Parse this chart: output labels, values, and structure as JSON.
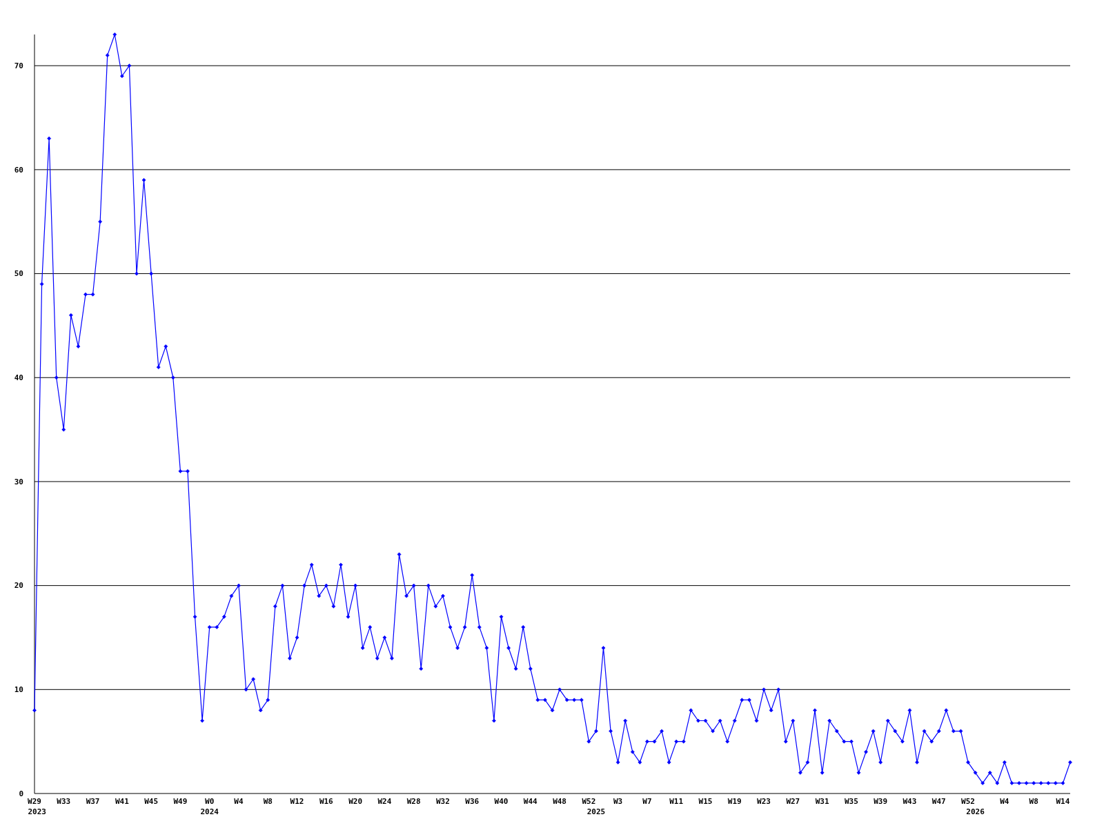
{
  "chart_data": {
    "type": "line",
    "categories": [
      "W29",
      null,
      null,
      null,
      "W33",
      null,
      null,
      null,
      "W37",
      null,
      null,
      null,
      "W41",
      null,
      null,
      null,
      "W45",
      null,
      null,
      null,
      "W49",
      null,
      null,
      null,
      "W0",
      null,
      null,
      null,
      "W4",
      null,
      null,
      null,
      "W8",
      null,
      null,
      null,
      "W12",
      null,
      null,
      null,
      "W16",
      null,
      null,
      null,
      "W20",
      null,
      null,
      null,
      "W24",
      null,
      null,
      null,
      "W28",
      null,
      null,
      null,
      "W32",
      null,
      null,
      null,
      "W36",
      null,
      null,
      null,
      "W40",
      null,
      null,
      null,
      "W44",
      null,
      null,
      null,
      "W48",
      null,
      null,
      null,
      "W52",
      null,
      null,
      null,
      "W3",
      null,
      null,
      null,
      "W7",
      null,
      null,
      null,
      "W11",
      null,
      null,
      null,
      "W15",
      null,
      null,
      null,
      "W19",
      null,
      null,
      null,
      "W23",
      null,
      null,
      null,
      "W27",
      null,
      null,
      null,
      "W31",
      null,
      null,
      null,
      "W35",
      null,
      null,
      null,
      "W39",
      null,
      null,
      null,
      "W43",
      null,
      null,
      null,
      "W47",
      null,
      null,
      null,
      "W52",
      null,
      null,
      null,
      null,
      "W4",
      null,
      null,
      null,
      "W8",
      null,
      null,
      null,
      "W14",
      null
    ],
    "series": [
      {
        "color": "#0000ff",
        "values": [
          8,
          49,
          63,
          40,
          35,
          46,
          43,
          48,
          48,
          55,
          71,
          73,
          69,
          70,
          50,
          59,
          50,
          41,
          43,
          40,
          31,
          31,
          17,
          7,
          16,
          16,
          17,
          19,
          20,
          10,
          11,
          8,
          9,
          18,
          20,
          13,
          15,
          20,
          22,
          19,
          20,
          18,
          22,
          17,
          20,
          14,
          16,
          13,
          15,
          13,
          23,
          19,
          20,
          12,
          20,
          18,
          19,
          16,
          14,
          16,
          21,
          16,
          14,
          7,
          17,
          14,
          12,
          16,
          12,
          9,
          9,
          8,
          10,
          9,
          9,
          9,
          5,
          6,
          14,
          6,
          3,
          7,
          4,
          3,
          5,
          5,
          6,
          3,
          5,
          5,
          8,
          7,
          7,
          6,
          7,
          5,
          7,
          9,
          9,
          7,
          10,
          8,
          10,
          5,
          7,
          2,
          3,
          8,
          2,
          7,
          6,
          5,
          5,
          2,
          4,
          6,
          3,
          7,
          6,
          5,
          8,
          3,
          6,
          5,
          6,
          8,
          6,
          6,
          3,
          2,
          1,
          2,
          1,
          3,
          1,
          1,
          1,
          1,
          1,
          1,
          1,
          1,
          3
        ]
      }
    ],
    "annotations": [
      "2023",
      "2024",
      "2025",
      "2026"
    ],
    "ylim": [
      0,
      73
    ],
    "yticks": [
      0,
      10,
      20,
      30,
      40,
      50,
      60,
      70
    ],
    "grid": "y",
    "marker": "diamond",
    "line_style": "solid"
  }
}
